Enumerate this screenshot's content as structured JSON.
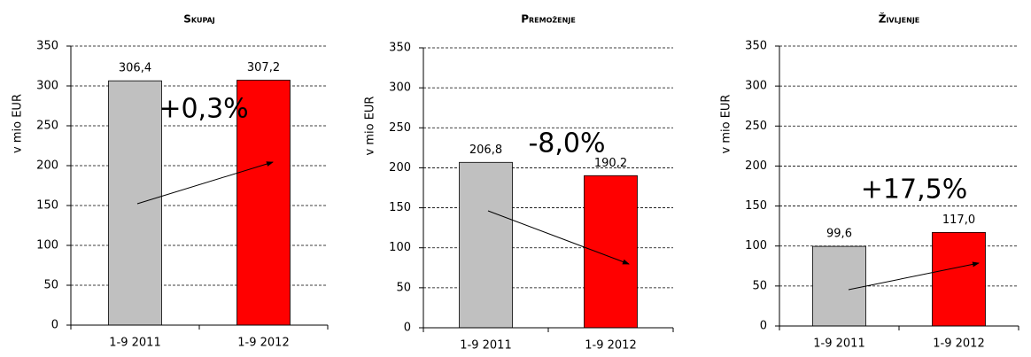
{
  "chart_data": [
    {
      "type": "bar",
      "title": "Skupaj",
      "y_label": "v mio EUR",
      "categories": [
        "1-9 2011",
        "1-9 2012"
      ],
      "values": [
        306.4,
        307.2
      ],
      "value_labels": [
        "306,4",
        "307,2"
      ],
      "colors": [
        "#c0c0c0",
        "#ff0000"
      ],
      "ylim": [
        0,
        350
      ],
      "yticks": [
        0,
        50,
        100,
        150,
        200,
        250,
        300,
        350
      ],
      "grid": true,
      "annotation": "+0,3%"
    },
    {
      "type": "bar",
      "title": "Premoženje",
      "y_label": "v mio EUR",
      "categories": [
        "1-9 2011",
        "1-9 2012"
      ],
      "values": [
        206.8,
        190.2
      ],
      "value_labels": [
        "206,8",
        "190,2"
      ],
      "colors": [
        "#c0c0c0",
        "#ff0000"
      ],
      "ylim": [
        0,
        350
      ],
      "yticks": [
        0,
        50,
        100,
        150,
        200,
        250,
        300,
        350
      ],
      "grid": true,
      "annotation": "-8,0%"
    },
    {
      "type": "bar",
      "title": "Življenje",
      "y_label": "v mio EUR",
      "categories": [
        "1-9 2011",
        "1-9 2012"
      ],
      "values": [
        99.6,
        117.0
      ],
      "value_labels": [
        "99,6",
        "117,0"
      ],
      "colors": [
        "#c0c0c0",
        "#ff0000"
      ],
      "ylim": [
        0,
        350
      ],
      "yticks": [
        0,
        50,
        100,
        150,
        200,
        250,
        300,
        350
      ],
      "grid": true,
      "annotation": "+17,5%"
    }
  ]
}
